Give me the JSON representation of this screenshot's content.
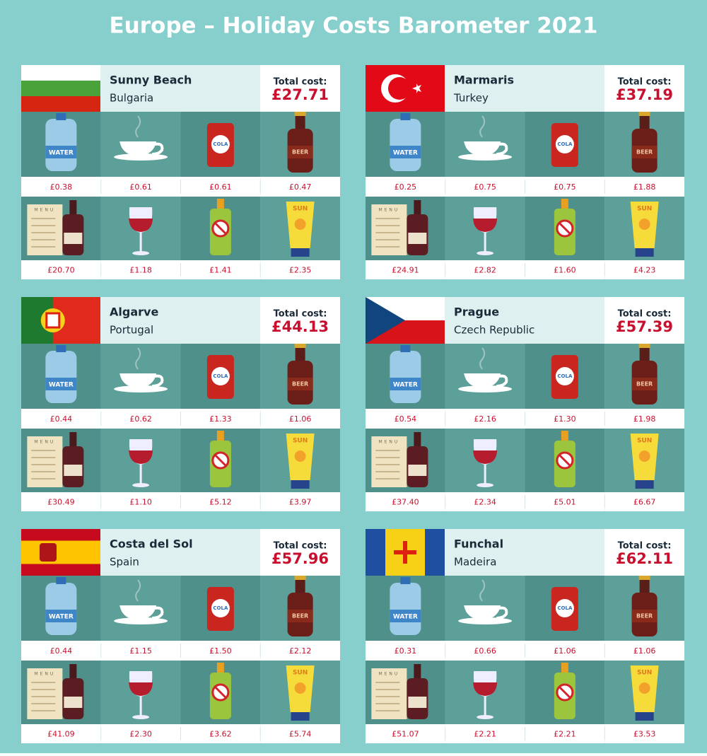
{
  "title": "Europe – Holiday Costs Barometer 2021",
  "total_label": "Total cost:",
  "icon_labels": {
    "water": "WATER",
    "cola": "COLA",
    "beer": "BEER",
    "menu": "MENU",
    "sun": "SUN"
  },
  "cards": [
    {
      "name": "Sunny Beach",
      "country": "Bulgaria",
      "total": "£27.71",
      "prices": [
        "£0.38",
        "£0.61",
        "£0.61",
        "£0.47",
        "£20.70",
        "£1.18",
        "£1.41",
        "£2.35"
      ]
    },
    {
      "name": "Marmaris",
      "country": "Turkey",
      "total": "£37.19",
      "prices": [
        "£0.25",
        "£0.75",
        "£0.75",
        "£1.88",
        "£24.91",
        "£2.82",
        "£1.60",
        "£4.23"
      ]
    },
    {
      "name": "Algarve",
      "country": "Portugal",
      "total": "£44.13",
      "prices": [
        "£0.44",
        "£0.62",
        "£1.33",
        "£1.06",
        "£30.49",
        "£1.10",
        "£5.12",
        "£3.97"
      ]
    },
    {
      "name": "Prague",
      "country": "Czech Republic",
      "total": "£57.39",
      "prices": [
        "£0.54",
        "£2.16",
        "£1.30",
        "£1.98",
        "£37.40",
        "£2.34",
        "£5.01",
        "£6.67"
      ]
    },
    {
      "name": "Costa del Sol",
      "country": "Spain",
      "total": "£57.96",
      "prices": [
        "£0.44",
        "£1.15",
        "£1.50",
        "£2.12",
        "£41.09",
        "£2.30",
        "£3.62",
        "£5.74"
      ]
    },
    {
      "name": "Funchal",
      "country": "Madeira",
      "total": "£62.11",
      "prices": [
        "£0.31",
        "£0.66",
        "£1.06",
        "£1.06",
        "£51.07",
        "£2.21",
        "£2.21",
        "£3.53"
      ]
    }
  ]
}
